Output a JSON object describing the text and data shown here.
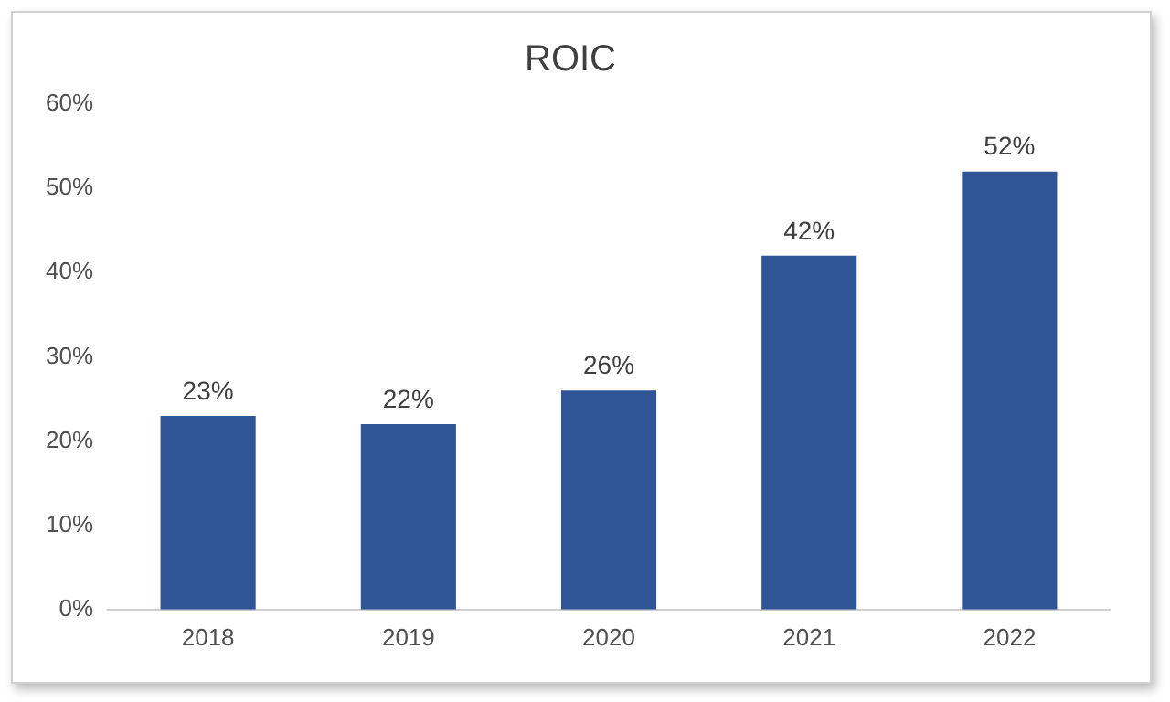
{
  "chart_data": {
    "type": "bar",
    "title": "ROIC",
    "categories": [
      "2018",
      "2019",
      "2020",
      "2021",
      "2022"
    ],
    "values": [
      23,
      22,
      26,
      42,
      52
    ],
    "value_labels": [
      "23%",
      "22%",
      "26%",
      "42%",
      "52%"
    ],
    "color": "#2f5597",
    "ylim": [
      0,
      60
    ],
    "yticks": [
      {
        "value": 0,
        "label": "0%"
      },
      {
        "value": 10,
        "label": "10%"
      },
      {
        "value": 20,
        "label": "20%"
      },
      {
        "value": 30,
        "label": "30%"
      },
      {
        "value": 40,
        "label": "40%"
      },
      {
        "value": 50,
        "label": "50%"
      },
      {
        "value": 60,
        "label": "60%"
      }
    ],
    "grid": false,
    "legend": false
  }
}
